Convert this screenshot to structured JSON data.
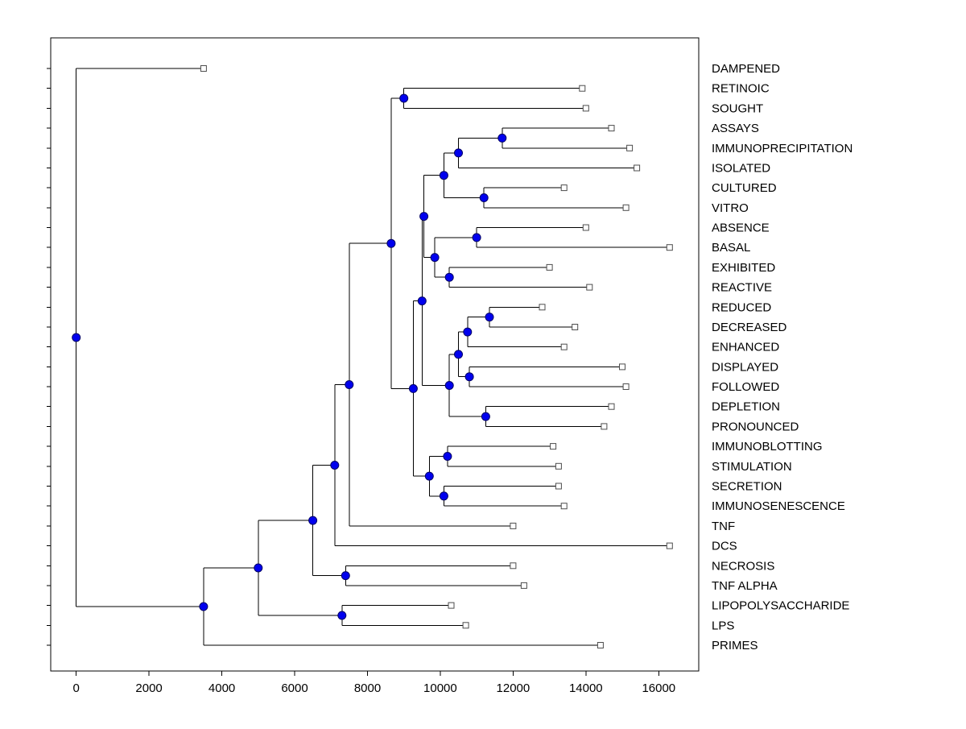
{
  "figure": {
    "background": "#ffffff",
    "line_color": "#000000",
    "axis_color": "#000000",
    "node_marker_fill": "#0000ee",
    "node_marker_edge": "#000066",
    "leaf_marker_fill": "#ffffff",
    "leaf_marker_edge": "#4d4d4d",
    "label_color": "#000000"
  },
  "chart_data": {
    "type": "dendrogram",
    "title": "",
    "xlabel": "",
    "ylabel": "",
    "orientation": "root-left-leaves-right",
    "xlim": [
      -700,
      17100
    ],
    "x_ticks": [
      0,
      2000,
      4000,
      6000,
      8000,
      10000,
      12000,
      14000,
      16000
    ],
    "grid": false,
    "legend": false,
    "leaves": [
      {
        "name": "DAMPENED",
        "x": 3500
      },
      {
        "name": "RETINOIC",
        "x": 13900
      },
      {
        "name": "SOUGHT",
        "x": 14000
      },
      {
        "name": "ASSAYS",
        "x": 14700
      },
      {
        "name": "IMMUNOPRECIPITATION",
        "x": 15200
      },
      {
        "name": "ISOLATED",
        "x": 15400
      },
      {
        "name": "CULTURED",
        "x": 13400
      },
      {
        "name": "VITRO",
        "x": 15100
      },
      {
        "name": "ABSENCE",
        "x": 14000
      },
      {
        "name": "BASAL",
        "x": 16300
      },
      {
        "name": "EXHIBITED",
        "x": 13000
      },
      {
        "name": "REACTIVE",
        "x": 14100
      },
      {
        "name": "REDUCED",
        "x": 12800
      },
      {
        "name": "DECREASED",
        "x": 13700
      },
      {
        "name": "ENHANCED",
        "x": 13400
      },
      {
        "name": "DISPLAYED",
        "x": 15000
      },
      {
        "name": "FOLLOWED",
        "x": 15100
      },
      {
        "name": "DEPLETION",
        "x": 14700
      },
      {
        "name": "PRONOUNCED",
        "x": 14500
      },
      {
        "name": "IMMUNOBLOTTING",
        "x": 13100
      },
      {
        "name": "STIMULATION",
        "x": 13250
      },
      {
        "name": "SECRETION",
        "x": 13250
      },
      {
        "name": "IMMUNOSENESCENCE",
        "x": 13400
      },
      {
        "name": "TNF",
        "x": 12000
      },
      {
        "name": "DCS",
        "x": 16300
      },
      {
        "name": "NECROSIS",
        "x": 12000
      },
      {
        "name": "TNF ALPHA",
        "x": 12300
      },
      {
        "name": "LIPOPOLYSACCHARIDE",
        "x": 10300
      },
      {
        "name": "LPS",
        "x": 10700
      },
      {
        "name": "PRIMES",
        "x": 14400
      }
    ],
    "nodes": [
      {
        "id": "root",
        "x": 0,
        "children": [
          "DAMPENED",
          "N1"
        ]
      },
      {
        "id": "N1",
        "x": 3500,
        "children": [
          "N2",
          "PRIMES"
        ]
      },
      {
        "id": "N2",
        "x": 5000,
        "children": [
          "N3",
          "NLL"
        ]
      },
      {
        "id": "NLL",
        "x": 7300,
        "children": [
          "LIPOPOLYSACCHARIDE",
          "LPS"
        ]
      },
      {
        "id": "N3",
        "x": 6500,
        "children": [
          "N4",
          "NNT"
        ]
      },
      {
        "id": "NNT",
        "x": 7400,
        "children": [
          "NECROSIS",
          "TNF ALPHA"
        ]
      },
      {
        "id": "N4",
        "x": 7100,
        "children": [
          "N5",
          "DCS"
        ]
      },
      {
        "id": "N5",
        "x": 7500,
        "children": [
          "UP",
          "TNF"
        ]
      },
      {
        "id": "UP",
        "x": 8650,
        "children": [
          "S",
          "X"
        ]
      },
      {
        "id": "S",
        "x": 9000,
        "children": [
          "RETINOIC",
          "SOUGHT"
        ]
      },
      {
        "id": "X",
        "x": 9260,
        "children": [
          "ABC",
          "D"
        ]
      },
      {
        "id": "ABC",
        "x": 9500,
        "children": [
          "AB",
          "C"
        ]
      },
      {
        "id": "AB",
        "x": 9550,
        "children": [
          "A",
          "B"
        ]
      },
      {
        "id": "A",
        "x": 10100,
        "children": [
          "A2",
          "A3"
        ]
      },
      {
        "id": "A2",
        "x": 10500,
        "children": [
          "A1",
          "ISOLATED"
        ]
      },
      {
        "id": "A1",
        "x": 11700,
        "children": [
          "ASSAYS",
          "IMMUNOPRECIPITATION"
        ]
      },
      {
        "id": "A3",
        "x": 11200,
        "children": [
          "CULTURED",
          "VITRO"
        ]
      },
      {
        "id": "B",
        "x": 9850,
        "children": [
          "B1",
          "B2"
        ]
      },
      {
        "id": "B1",
        "x": 11000,
        "children": [
          "ABSENCE",
          "BASAL"
        ]
      },
      {
        "id": "B2",
        "x": 10250,
        "children": [
          "EXHIBITED",
          "REACTIVE"
        ]
      },
      {
        "id": "C",
        "x": 10250,
        "children": [
          "C4",
          "C5"
        ]
      },
      {
        "id": "C4",
        "x": 10500,
        "children": [
          "C2",
          "C3"
        ]
      },
      {
        "id": "C2",
        "x": 10750,
        "children": [
          "C1",
          "ENHANCED"
        ]
      },
      {
        "id": "C1",
        "x": 11350,
        "children": [
          "REDUCED",
          "DECREASED"
        ]
      },
      {
        "id": "C3",
        "x": 10800,
        "children": [
          "DISPLAYED",
          "FOLLOWED"
        ]
      },
      {
        "id": "C5",
        "x": 11250,
        "children": [
          "DEPLETION",
          "PRONOUNCED"
        ]
      },
      {
        "id": "D",
        "x": 9700,
        "children": [
          "D1",
          "D2"
        ]
      },
      {
        "id": "D1",
        "x": 10200,
        "children": [
          "IMMUNOBLOTTING",
          "STIMULATION"
        ]
      },
      {
        "id": "D2",
        "x": 10100,
        "children": [
          "SECRETION",
          "IMMUNOSENESCENCE"
        ]
      }
    ]
  }
}
